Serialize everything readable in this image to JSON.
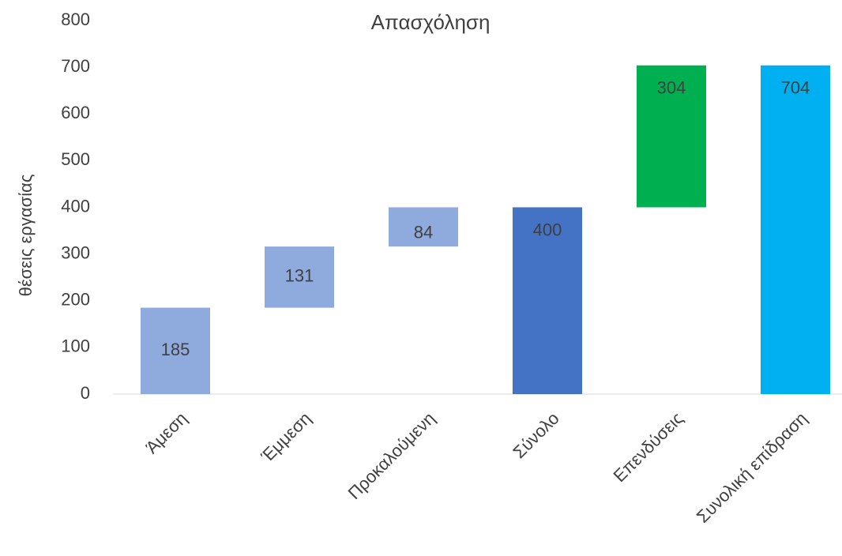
{
  "chart_data": {
    "type": "waterfall",
    "title": "Απασχόληση",
    "y_label": "θέσεις εργασίας",
    "categories": [
      "Άμεση",
      "Έμμεση",
      "Προκαλούμενη",
      "Σύνολο",
      "Επενδύσεις",
      "Συνολική επίδραση"
    ],
    "values": [
      185,
      131,
      84,
      400,
      304,
      704
    ],
    "totals": [
      false,
      false,
      false,
      true,
      false,
      true
    ],
    "colors": [
      "#8faadc",
      "#8faadc",
      "#8faadc",
      "#4472c4",
      "#00b050",
      "#00b0f0"
    ],
    "ylim": [
      0,
      800
    ],
    "yticks": [
      0,
      100,
      200,
      300,
      400,
      500,
      600,
      700,
      800
    ],
    "grid": false
  }
}
